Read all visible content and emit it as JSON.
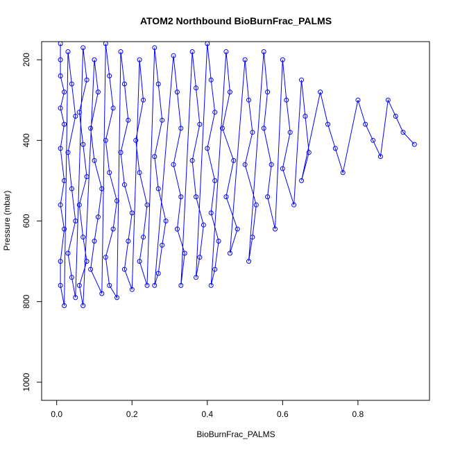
{
  "chart_data": {
    "type": "scatter",
    "title": "ATOM2 Northbound BioBurnFrac_PALMS",
    "xlabel": "BioBurnFrac_PALMS",
    "ylabel": "Pressure (mbar)",
    "xlim": [
      -0.04,
      0.99
    ],
    "ylim": [
      1045,
      155
    ],
    "y_reversed": true,
    "x_ticks": [
      0.0,
      0.2,
      0.4,
      0.6,
      0.8
    ],
    "x_tick_labels": [
      "0.0",
      "0.2",
      "0.4",
      "0.6",
      "0.8"
    ],
    "y_ticks": [
      200,
      400,
      600,
      800,
      1000
    ],
    "y_tick_labels": [
      "200",
      "400",
      "600",
      "800",
      "1000"
    ],
    "grid": false,
    "legend": "none",
    "marker": "open-circle",
    "color": "#0000ff",
    "lines_connect_points": true,
    "series": [
      {
        "points": [
          [
            0.01,
            160
          ],
          [
            0.01,
            200
          ],
          [
            0.01,
            240
          ],
          [
            0.02,
            280
          ],
          [
            0.01,
            320
          ],
          [
            0.02,
            360
          ],
          [
            0.01,
            420
          ],
          [
            0.02,
            500
          ],
          [
            0.01,
            560
          ],
          [
            0.02,
            620
          ],
          [
            0.01,
            700
          ],
          [
            0.01,
            760
          ],
          [
            0.02,
            810
          ],
          [
            0.03,
            180
          ],
          [
            0.04,
            260
          ],
          [
            0.05,
            340
          ],
          [
            0.03,
            430
          ],
          [
            0.04,
            520
          ],
          [
            0.05,
            600
          ],
          [
            0.03,
            680
          ],
          [
            0.04,
            740
          ],
          [
            0.05,
            790
          ],
          [
            0.07,
            170
          ],
          [
            0.08,
            250
          ],
          [
            0.06,
            330
          ],
          [
            0.07,
            410
          ],
          [
            0.08,
            490
          ],
          [
            0.06,
            560
          ],
          [
            0.07,
            640
          ],
          [
            0.08,
            700
          ],
          [
            0.06,
            760
          ],
          [
            0.07,
            810
          ],
          [
            0.1,
            200
          ],
          [
            0.11,
            280
          ],
          [
            0.09,
            370
          ],
          [
            0.1,
            450
          ],
          [
            0.12,
            520
          ],
          [
            0.11,
            590
          ],
          [
            0.1,
            650
          ],
          [
            0.09,
            720
          ],
          [
            0.12,
            780
          ],
          [
            0.13,
            160
          ],
          [
            0.14,
            240
          ],
          [
            0.15,
            320
          ],
          [
            0.13,
            400
          ],
          [
            0.14,
            480
          ],
          [
            0.16,
            550
          ],
          [
            0.15,
            620
          ],
          [
            0.13,
            690
          ],
          [
            0.14,
            760
          ],
          [
            0.16,
            790
          ],
          [
            0.17,
            180
          ],
          [
            0.18,
            260
          ],
          [
            0.19,
            350
          ],
          [
            0.17,
            430
          ],
          [
            0.18,
            510
          ],
          [
            0.2,
            580
          ],
          [
            0.19,
            650
          ],
          [
            0.18,
            720
          ],
          [
            0.2,
            770
          ],
          [
            0.22,
            200
          ],
          [
            0.23,
            300
          ],
          [
            0.21,
            400
          ],
          [
            0.22,
            480
          ],
          [
            0.24,
            560
          ],
          [
            0.23,
            640
          ],
          [
            0.22,
            700
          ],
          [
            0.24,
            760
          ],
          [
            0.26,
            170
          ],
          [
            0.27,
            260
          ],
          [
            0.28,
            350
          ],
          [
            0.26,
            440
          ],
          [
            0.27,
            520
          ],
          [
            0.29,
            600
          ],
          [
            0.28,
            660
          ],
          [
            0.27,
            730
          ],
          [
            0.26,
            760
          ],
          [
            0.31,
            190
          ],
          [
            0.32,
            280
          ],
          [
            0.33,
            370
          ],
          [
            0.31,
            460
          ],
          [
            0.33,
            540
          ],
          [
            0.32,
            620
          ],
          [
            0.34,
            680
          ],
          [
            0.33,
            760
          ],
          [
            0.36,
            180
          ],
          [
            0.37,
            270
          ],
          [
            0.38,
            360
          ],
          [
            0.36,
            450
          ],
          [
            0.37,
            540
          ],
          [
            0.39,
            610
          ],
          [
            0.38,
            690
          ],
          [
            0.37,
            740
          ],
          [
            0.4,
            160
          ],
          [
            0.41,
            250
          ],
          [
            0.42,
            330
          ],
          [
            0.4,
            420
          ],
          [
            0.42,
            500
          ],
          [
            0.41,
            580
          ],
          [
            0.43,
            650
          ],
          [
            0.42,
            720
          ],
          [
            0.41,
            760
          ],
          [
            0.45,
            180
          ],
          [
            0.46,
            280
          ],
          [
            0.44,
            370
          ],
          [
            0.47,
            450
          ],
          [
            0.45,
            540
          ],
          [
            0.48,
            620
          ],
          [
            0.46,
            680
          ],
          [
            0.5,
            200
          ],
          [
            0.51,
            300
          ],
          [
            0.52,
            380
          ],
          [
            0.5,
            460
          ],
          [
            0.53,
            560
          ],
          [
            0.52,
            640
          ],
          [
            0.51,
            700
          ],
          [
            0.55,
            180
          ],
          [
            0.56,
            280
          ],
          [
            0.55,
            370
          ],
          [
            0.57,
            460
          ],
          [
            0.56,
            540
          ],
          [
            0.58,
            620
          ],
          [
            0.6,
            200
          ],
          [
            0.61,
            300
          ],
          [
            0.62,
            380
          ],
          [
            0.6,
            470
          ],
          [
            0.63,
            560
          ],
          [
            0.65,
            250
          ],
          [
            0.66,
            340
          ],
          [
            0.67,
            430
          ],
          [
            0.65,
            500
          ],
          [
            0.7,
            280
          ],
          [
            0.72,
            360
          ],
          [
            0.74,
            420
          ],
          [
            0.76,
            480
          ],
          [
            0.8,
            300
          ],
          [
            0.82,
            360
          ],
          [
            0.84,
            400
          ],
          [
            0.86,
            440
          ],
          [
            0.88,
            300
          ],
          [
            0.9,
            340
          ],
          [
            0.92,
            380
          ],
          [
            0.95,
            410
          ]
        ]
      }
    ]
  }
}
